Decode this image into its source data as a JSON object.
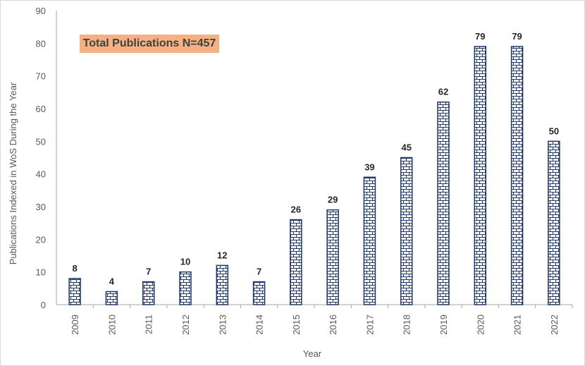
{
  "chart_data": {
    "type": "bar",
    "categories": [
      "2009",
      "2010",
      "2011",
      "2012",
      "2013",
      "2014",
      "2015",
      "2016",
      "2017",
      "2018",
      "2019",
      "2020",
      "2021",
      "2022"
    ],
    "values": [
      8,
      4,
      7,
      10,
      12,
      7,
      26,
      29,
      39,
      45,
      62,
      79,
      79,
      50
    ],
    "xlabel": "Year",
    "ylabel": "Publications Indexed in WoS During the Year",
    "ylim": [
      0,
      90
    ],
    "yticks": [
      0,
      10,
      20,
      30,
      40,
      50,
      60,
      70,
      80,
      90
    ],
    "grid": false,
    "bar_fill": "brick-pattern",
    "bar_color": "#1f3864",
    "annotation": "Total Publications N=457",
    "annotation_color": "#f4b183"
  }
}
